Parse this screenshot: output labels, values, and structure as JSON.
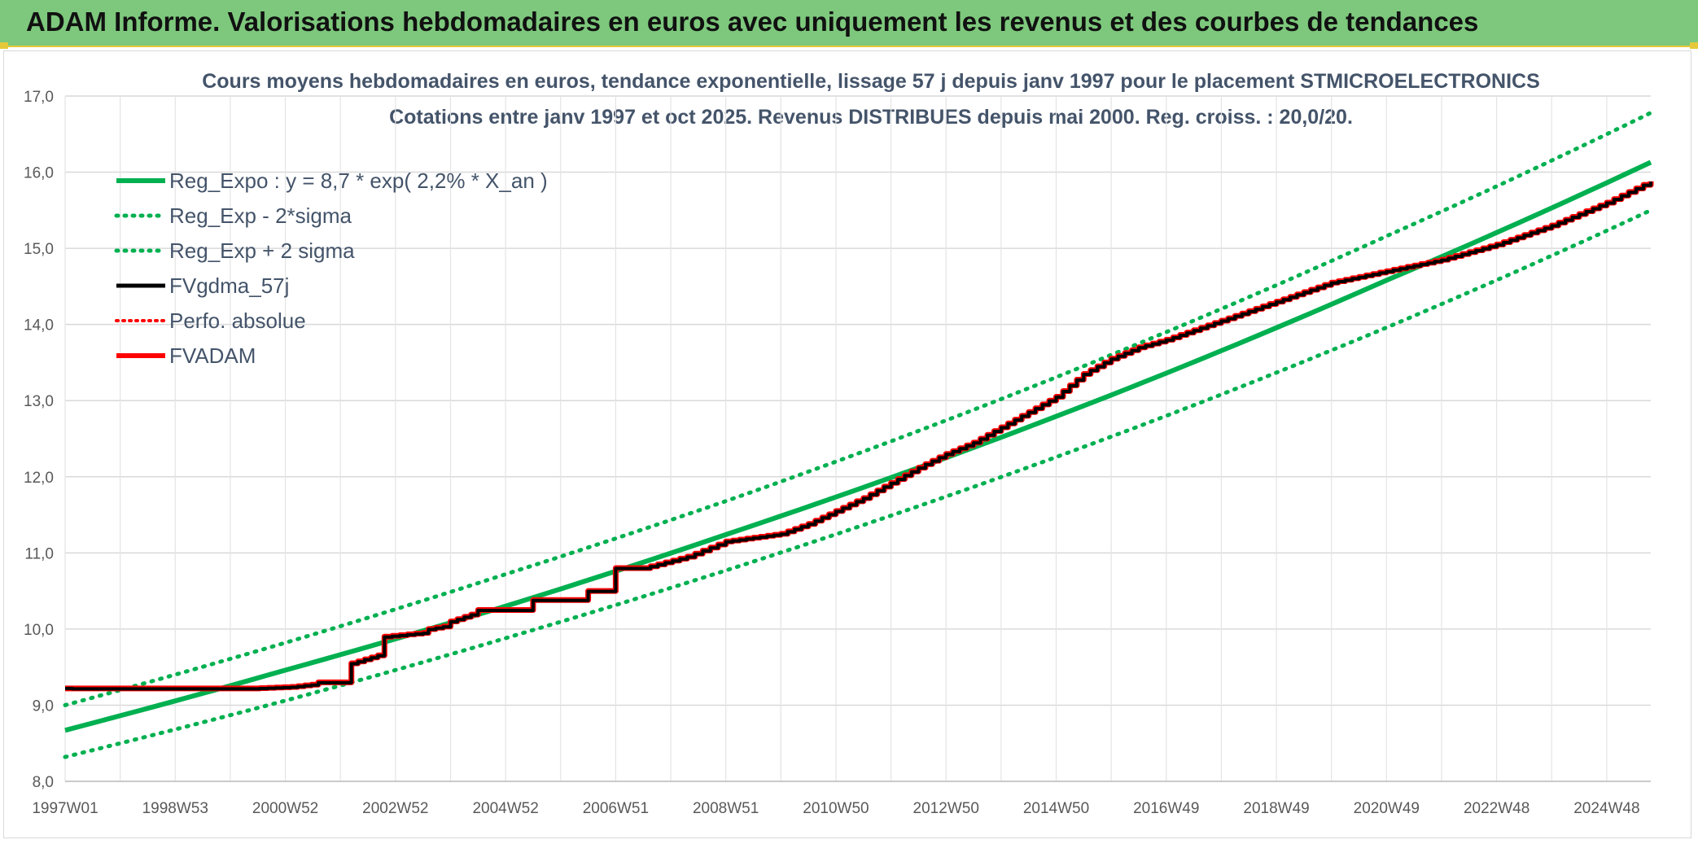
{
  "header": {
    "title": "ADAM Informe. Valorisations hebdomadaires en euros avec uniquement les revenus et des courbes de tendances"
  },
  "colors": {
    "header_bg": "#7dc87c",
    "trend": "#00b050",
    "fvadam": "#ff0000",
    "fvgdma": "#000000",
    "title": "#44546a"
  },
  "chart_data": {
    "type": "line",
    "title": "Cours moyens hebdomadaires en euros, tendance exponentielle, lissage 57 j depuis janv 1997 pour le placement STMICROELECTRONICS",
    "subtitle": "Cotations entre janv 1997 et oct 2025. Revenus DISTRIBUES depuis mai 2000. Reg. croiss. : 20,0/20.",
    "xlabel": "",
    "ylabel": "",
    "x_range": [
      1997.0,
      2025.8
    ],
    "ylim": [
      8.0,
      17.0
    ],
    "y_ticks": [
      "8,0",
      "9,0",
      "10,0",
      "11,0",
      "12,0",
      "13,0",
      "14,0",
      "15,0",
      "16,0",
      "17,0"
    ],
    "x_tick_labels": [
      "1997W01",
      "1998W53",
      "2000W52",
      "2002W52",
      "2004W52",
      "2006W51",
      "2008W51",
      "2010W50",
      "2012W50",
      "2014W50",
      "2016W49",
      "2018W49",
      "2020W49",
      "2022W48",
      "2024W48"
    ],
    "legend": {
      "position": "top-left",
      "entries": [
        {
          "name": "Reg_Expo : y = 8,7 * exp( 2,2% *  X_an )",
          "color": "#00b050",
          "style": "solid"
        },
        {
          "name": "Reg_Exp - 2*sigma",
          "color": "#00b050",
          "style": "dotted"
        },
        {
          "name": "Reg_Exp + 2 sigma",
          "color": "#00b050",
          "style": "dotted"
        },
        {
          "name": "FVgdma_57j",
          "color": "#000000",
          "style": "solid"
        },
        {
          "name": "Perfo. absolue",
          "color": "#ff0000",
          "style": "dotted"
        },
        {
          "name": "FVADAM",
          "color": "#ff0000",
          "style": "solid"
        }
      ]
    },
    "series": [
      {
        "name": "Reg_Expo",
        "x": [
          1997.0,
          2001.0,
          2005.0,
          2009.0,
          2013.0,
          2017.0,
          2021.0,
          2025.8
        ],
        "values": [
          8.67,
          9.46,
          10.3,
          11.24,
          12.25,
          13.36,
          14.58,
          16.13
        ]
      },
      {
        "name": "Reg_Exp - 2*sigma",
        "x": [
          1997.0,
          2001.0,
          2005.0,
          2009.0,
          2013.0,
          2017.0,
          2021.0,
          2025.8
        ],
        "values": [
          8.32,
          9.06,
          9.88,
          10.77,
          11.74,
          12.8,
          13.96,
          15.5
        ]
      },
      {
        "name": "Reg_Exp + 2 sigma",
        "x": [
          1997.0,
          2001.0,
          2005.0,
          2009.0,
          2013.0,
          2017.0,
          2021.0,
          2025.8
        ],
        "values": [
          9.0,
          9.82,
          10.72,
          11.68,
          12.74,
          13.9,
          15.16,
          16.78
        ]
      },
      {
        "name": "FVADAM",
        "x": [
          1997.0,
          2000.4,
          2001.1,
          2001.6,
          2001.6,
          2002.1,
          2002.2,
          2002.8,
          2002.8,
          2003.5,
          2003.6,
          2004.0,
          2004.0,
          2004.5,
          2004.5,
          2005.5,
          2005.5,
          2006.5,
          2006.5,
          2007.0,
          2007.0,
          2007.4,
          2007.5,
          2008.3,
          2009.0,
          2009.5,
          2010.0,
          2010.5,
          2011.0,
          2011.5,
          2012.0,
          2012.5,
          2013.0,
          2013.5,
          2014.0,
          2014.5,
          2015.0,
          2015.5,
          2016.0,
          2016.5,
          2017.0,
          2018.0,
          2019.0,
          2020.0,
          2021.0,
          2022.0,
          2023.0,
          2024.0,
          2025.0,
          2025.8
        ],
        "values": [
          9.22,
          9.22,
          9.24,
          9.28,
          9.3,
          9.3,
          9.55,
          9.68,
          9.9,
          9.95,
          10.0,
          10.05,
          10.1,
          10.22,
          10.25,
          10.25,
          10.38,
          10.38,
          10.5,
          10.5,
          10.8,
          10.8,
          10.8,
          10.95,
          11.15,
          11.2,
          11.25,
          11.38,
          11.55,
          11.72,
          11.92,
          12.12,
          12.3,
          12.45,
          12.65,
          12.85,
          13.05,
          13.35,
          13.55,
          13.7,
          13.8,
          14.05,
          14.3,
          14.55,
          14.7,
          14.85,
          15.05,
          15.3,
          15.6,
          15.88
        ]
      },
      {
        "name": "FVgdma_57j",
        "x": [
          1997.0,
          2000.4,
          2001.1,
          2001.6,
          2001.6,
          2002.1,
          2002.2,
          2002.8,
          2002.8,
          2003.5,
          2003.6,
          2004.0,
          2004.0,
          2004.5,
          2004.5,
          2005.5,
          2005.5,
          2006.5,
          2006.5,
          2007.0,
          2007.0,
          2007.4,
          2007.5,
          2008.3,
          2009.0,
          2009.5,
          2010.0,
          2010.5,
          2011.0,
          2011.5,
          2012.0,
          2012.5,
          2013.0,
          2013.5,
          2014.0,
          2014.5,
          2015.0,
          2015.5,
          2016.0,
          2016.5,
          2017.0,
          2018.0,
          2019.0,
          2020.0,
          2021.0,
          2022.0,
          2023.0,
          2024.0,
          2025.0,
          2025.8
        ],
        "values": [
          9.22,
          9.22,
          9.24,
          9.28,
          9.3,
          9.3,
          9.55,
          9.68,
          9.9,
          9.95,
          10.0,
          10.05,
          10.1,
          10.22,
          10.25,
          10.25,
          10.38,
          10.38,
          10.5,
          10.5,
          10.8,
          10.8,
          10.8,
          10.95,
          11.15,
          11.2,
          11.25,
          11.38,
          11.55,
          11.72,
          11.92,
          12.12,
          12.3,
          12.45,
          12.65,
          12.85,
          13.05,
          13.35,
          13.55,
          13.7,
          13.8,
          14.05,
          14.3,
          14.55,
          14.7,
          14.85,
          15.05,
          15.3,
          15.6,
          15.88
        ]
      }
    ]
  }
}
